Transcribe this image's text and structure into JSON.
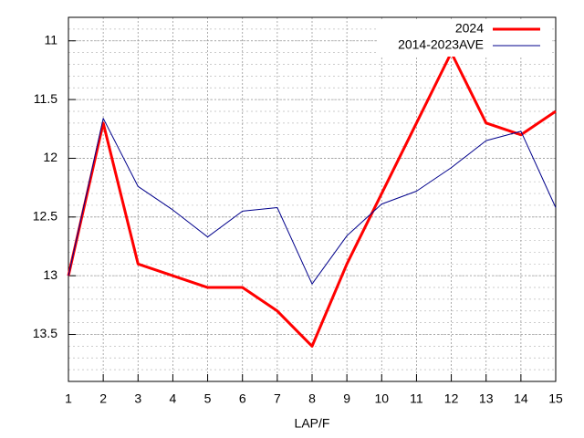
{
  "chart_data": {
    "type": "line",
    "x_label": "LAP/F",
    "x": [
      1,
      2,
      3,
      4,
      5,
      6,
      7,
      8,
      9,
      10,
      11,
      12,
      13,
      14,
      15
    ],
    "series": [
      {
        "name": "2024",
        "color": "#ff0000",
        "width": 3,
        "values": [
          13.0,
          11.7,
          12.9,
          13.0,
          13.1,
          13.1,
          13.3,
          13.6,
          12.9,
          12.3,
          11.7,
          11.1,
          11.7,
          11.8,
          11.6
        ]
      },
      {
        "name": "2014-2023AVE",
        "color": "#00008b",
        "width": 1,
        "values": [
          13.0,
          11.66,
          12.24,
          12.44,
          12.67,
          12.45,
          12.42,
          13.07,
          12.66,
          12.39,
          12.28,
          12.08,
          11.85,
          11.77,
          12.42
        ]
      }
    ],
    "xlim": [
      1,
      15
    ],
    "xticks": [
      1,
      2,
      3,
      4,
      5,
      6,
      7,
      8,
      9,
      10,
      11,
      12,
      13,
      14,
      15
    ],
    "ylim": [
      10.8,
      13.9
    ],
    "yticks": [
      11,
      11.5,
      12,
      12.5,
      13,
      13.5
    ],
    "y_reversed": true,
    "grid": true,
    "y_minor_divisions": 5,
    "legend": "top-right"
  }
}
